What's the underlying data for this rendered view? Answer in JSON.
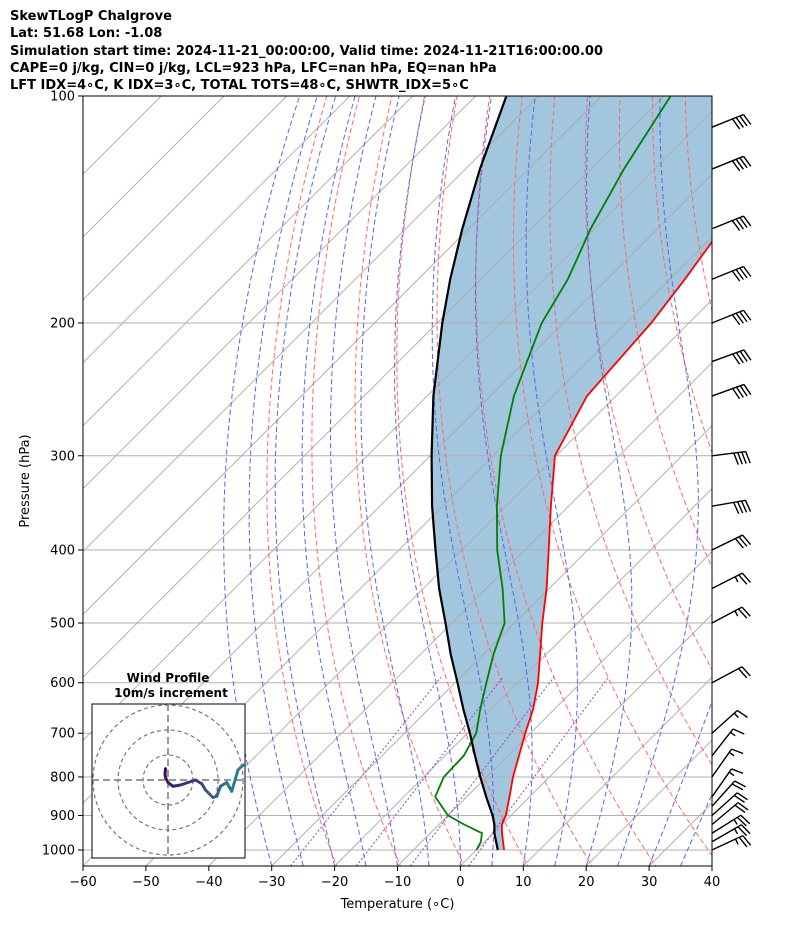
{
  "header": {
    "title": "SkewTLogP Chalgrove",
    "latlon": "Lat: 51.68   Lon: -1.08",
    "times": "Simulation start time: 2024-11-21_00:00:00, Valid time: 2024-11-21T16:00:00.00",
    "params": "CAPE=0 j/kg, CIN=0 j/kg, LCL=923 hPa, LFC=nan hPa, EQ=nan hPa",
    "indices": "LFT IDX=4$^\\circ$C, K IDX=3$^\\circ$C, TOTAL TOTS=48$^\\circ$C, SHWTR_IDX=5$^\\circ$C",
    "indices_display": "LFT IDX=4∘C, K IDX=3∘C, TOTAL TOTS=48∘C, SHWTR_IDX=5∘C"
  },
  "chart_data": {
    "type": "line",
    "subtype": "skew-T log-P diagram",
    "xlabel": "Temperature (∘C)",
    "ylabel": "Pressure (hPa)",
    "xlim": [
      -60,
      40
    ],
    "ylim_hpa": [
      1050,
      100
    ],
    "x_ticks": [
      "−60",
      "−50",
      "−40",
      "−30",
      "−20",
      "−10",
      "0",
      "10",
      "20",
      "30",
      "40"
    ],
    "y_ticks": [
      "100",
      "200",
      "300",
      "400",
      "500",
      "600",
      "700",
      "800",
      "900",
      "1000"
    ],
    "grid": true,
    "colors": {
      "temperature": "#ff0000",
      "dewpoint": "#008000",
      "parcel": "#000000",
      "shade": "#a3c6df",
      "dry_adiabats": "#ff6666",
      "moist_adiabats": "#5566ee",
      "mixing_ratio": "#9b3fc8",
      "isotherms": "#a9a9a9"
    },
    "series": [
      {
        "name": "temperature",
        "points": [
          [
            1000,
            4.4
          ],
          [
            950,
            1.4
          ],
          [
            925,
            0.0
          ],
          [
            900,
            -0.8
          ],
          [
            850,
            -3.2
          ],
          [
            800,
            -5.8
          ],
          [
            750,
            -8.2
          ],
          [
            700,
            -10.8
          ],
          [
            650,
            -13.4
          ],
          [
            600,
            -16.8
          ],
          [
            550,
            -21.0
          ],
          [
            500,
            -25.6
          ],
          [
            450,
            -30.4
          ],
          [
            400,
            -36.2
          ],
          [
            350,
            -42.8
          ],
          [
            300,
            -50.2
          ],
          [
            250,
            -54.6
          ],
          [
            200,
            -56.0
          ],
          [
            175,
            -57.6
          ],
          [
            150,
            -59.8
          ],
          [
            125,
            -62.6
          ],
          [
            100,
            -65.6
          ]
        ]
      },
      {
        "name": "dewpoint",
        "points": [
          [
            1000,
            0.0
          ],
          [
            975,
            -0.6
          ],
          [
            950,
            -1.8
          ],
          [
            925,
            -6.0
          ],
          [
            900,
            -10.0
          ],
          [
            850,
            -15.0
          ],
          [
            800,
            -16.8
          ],
          [
            750,
            -17.0
          ],
          [
            700,
            -18.6
          ],
          [
            650,
            -21.8
          ],
          [
            600,
            -25.0
          ],
          [
            550,
            -28.4
          ],
          [
            500,
            -31.6
          ],
          [
            450,
            -37.4
          ],
          [
            400,
            -44.4
          ],
          [
            350,
            -51.4
          ],
          [
            300,
            -58.8
          ],
          [
            250,
            -66.2
          ],
          [
            200,
            -73.4
          ],
          [
            175,
            -76.2
          ],
          [
            150,
            -80.6
          ],
          [
            125,
            -84.8
          ],
          [
            100,
            -89.0
          ]
        ]
      },
      {
        "name": "parcel",
        "points": [
          [
            1000,
            3.4
          ],
          [
            950,
            0.2
          ],
          [
            925,
            -1.2
          ],
          [
            900,
            -2.9
          ],
          [
            850,
            -6.9
          ],
          [
            800,
            -11.0
          ],
          [
            750,
            -15.2
          ],
          [
            700,
            -19.6
          ],
          [
            650,
            -24.5
          ],
          [
            600,
            -29.6
          ],
          [
            550,
            -35.2
          ],
          [
            500,
            -41.0
          ],
          [
            450,
            -47.5
          ],
          [
            400,
            -54.2
          ],
          [
            350,
            -61.7
          ],
          [
            300,
            -69.8
          ],
          [
            250,
            -79.0
          ],
          [
            200,
            -89.2
          ],
          [
            175,
            -94.9
          ],
          [
            150,
            -101.0
          ],
          [
            125,
            -107.7
          ],
          [
            100,
            -115.1
          ]
        ]
      }
    ],
    "wind_barbs": [
      {
        "p": 1000,
        "kt": 25,
        "dir": 245
      },
      {
        "p": 975,
        "kt": 25,
        "dir": 240
      },
      {
        "p": 950,
        "kt": 25,
        "dir": 238
      },
      {
        "p": 925,
        "kt": 20,
        "dir": 230
      },
      {
        "p": 900,
        "kt": 20,
        "dir": 228
      },
      {
        "p": 875,
        "kt": 20,
        "dir": 222
      },
      {
        "p": 850,
        "kt": 15,
        "dir": 215
      },
      {
        "p": 800,
        "kt": 15,
        "dir": 215
      },
      {
        "p": 750,
        "kt": 15,
        "dir": 218
      },
      {
        "p": 700,
        "kt": 15,
        "dir": 228
      },
      {
        "p": 600,
        "kt": 20,
        "dir": 242
      },
      {
        "p": 500,
        "kt": 25,
        "dir": 242
      },
      {
        "p": 450,
        "kt": 25,
        "dir": 243
      },
      {
        "p": 400,
        "kt": 30,
        "dir": 244
      },
      {
        "p": 350,
        "kt": 40,
        "dir": 260
      },
      {
        "p": 300,
        "kt": 40,
        "dir": 263
      },
      {
        "p": 250,
        "kt": 40,
        "dir": 250
      },
      {
        "p": 225,
        "kt": 40,
        "dir": 250
      },
      {
        "p": 200,
        "kt": 40,
        "dir": 248
      },
      {
        "p": 175,
        "kt": 40,
        "dir": 248
      },
      {
        "p": 150,
        "kt": 40,
        "dir": 248
      },
      {
        "p": 125,
        "kt": 40,
        "dir": 248
      },
      {
        "p": 110,
        "kt": 40,
        "dir": 248
      }
    ],
    "hodograph": {
      "title": "Wind Profile",
      "subtitle": "10m/s increment",
      "ring_step_ms": 10,
      "rings": 3,
      "uv_ms": [
        [
          -1.0,
          4.5
        ],
        [
          -1.2,
          2.5
        ],
        [
          -1.0,
          1.0
        ],
        [
          0.0,
          -1.0
        ],
        [
          2.0,
          -2.5
        ],
        [
          5.0,
          -2.0
        ],
        [
          8.0,
          -1.0
        ],
        [
          11.0,
          0.0
        ],
        [
          13.5,
          -1.5
        ],
        [
          15.0,
          -4.0
        ],
        [
          16.5,
          -5.5
        ],
        [
          18.0,
          -7.0
        ],
        [
          19.5,
          -6.5
        ],
        [
          21.0,
          -2.5
        ],
        [
          23.5,
          -1.0
        ],
        [
          25.5,
          -4.5
        ],
        [
          28.0,
          4.0
        ],
        [
          30.0,
          6.0
        ],
        [
          32.0,
          5.0
        ],
        [
          34.0,
          1.5
        ]
      ]
    }
  }
}
